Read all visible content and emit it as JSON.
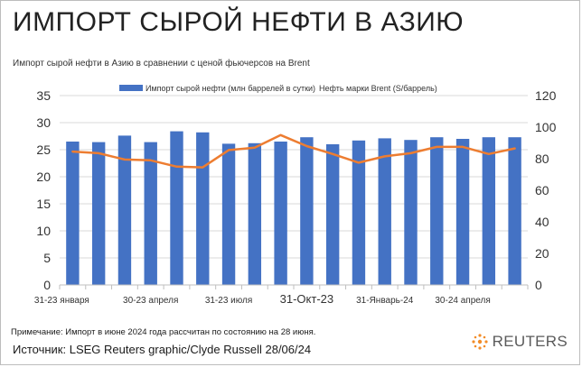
{
  "header": {
    "title": "ИМПОРТ СЫРОЙ НЕФТИ В АЗИЮ",
    "subtitle": "Импорт сырой нефти в Азию в сравнении с ценой фьючерсов на Brent"
  },
  "footer": {
    "note": "Примечание: Импорт в июне 2024 года рассчитан по состоянию на 28 июня.",
    "source": "Источник: LSEG Reuters graphic/Clyde Russell 28/06/24",
    "logo_text": "REUTERS",
    "logo_icon": "reuters-dot-logo"
  },
  "colors": {
    "bars": "#4472c4",
    "line": "#ed7d31",
    "grid": "#d9d9d9",
    "axis": "#333333",
    "logo": "#f28c28"
  },
  "chart_data": {
    "type": "bar",
    "combo": "bar+line",
    "legend_position": "top-center",
    "grid": true,
    "x_tick_labels": [
      "31-23 января",
      "30-23 апреля",
      "31-23 июля",
      "31-Окт-23",
      "31-Январь-24",
      "30-24 апреля"
    ],
    "x_tick_positions": [
      0,
      3,
      6,
      9,
      12,
      15
    ],
    "y_left_ticks": [
      0,
      5,
      10,
      15,
      20,
      25,
      30,
      35
    ],
    "y_right_ticks": [
      0,
      20,
      40,
      60,
      80,
      100,
      120
    ],
    "ylim_left": [
      0,
      35
    ],
    "ylim_right": [
      0,
      120
    ],
    "series": [
      {
        "name": "Импорт сырой нефти (млн баррелей в сутки)",
        "type": "bar",
        "axis": "left",
        "values": [
          26.5,
          26.4,
          27.6,
          26.4,
          28.4,
          28.2,
          26.1,
          26.2,
          26.5,
          27.3,
          26.0,
          26.7,
          27.1,
          26.8,
          27.3,
          27.0,
          27.3,
          27.3
        ]
      },
      {
        "name": "Нефть марки Brent (S/баррель)",
        "type": "line",
        "axis": "right",
        "values": [
          84.5,
          83.5,
          79.5,
          79.0,
          75.0,
          74.5,
          85.5,
          87.0,
          95.0,
          88.0,
          83.0,
          77.5,
          81.5,
          83.5,
          87.5,
          87.5,
          83.0,
          86.5
        ]
      }
    ]
  }
}
